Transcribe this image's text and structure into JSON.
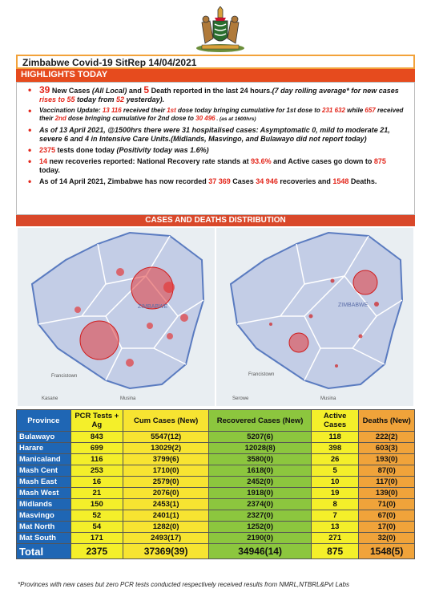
{
  "header": {
    "title": "Zimbabwe Covid-19 SitRep 14/04/2021",
    "highlights_label": "HIGHLIGHTS TODAY",
    "distribution_label": "CASES AND DEATHS DISTRIBUTION"
  },
  "bullets": {
    "b1_a": "39",
    "b1_b": " New Cases ",
    "b1_c": "(All Local)",
    "b1_d": " and ",
    "b1_e": "5",
    "b1_f": " Death reported in the last 24 hours.",
    "b1_g": "(7 day rolling average* for new cases ",
    "b1_h": "rises to 55",
    "b1_i": " today from ",
    "b1_j": "52",
    "b1_k": " yesterday).",
    "b2_a": "Vaccination Update: ",
    "b2_b": "13 116",
    "b2_c": " received their ",
    "b2_d": "1st",
    "b2_e": " dose today bringing cumulative for 1st dose to ",
    "b2_f": "231 632",
    "b2_g": " while ",
    "b2_h": "657",
    "b2_i": " received their ",
    "b2_j": "2nd",
    "b2_k": " dose bringing cumulative for 2nd dose to ",
    "b2_l": "30 496",
    "b2_m": " . (as at 1600hrs)",
    "b3": "As of 13 April 2021, @1500hrs there were 31 hospitalised cases: Asymptomatic 0, mild to moderate 21, severe 6 and 4  in Intensive Care Units.(Midlands, Masvingo, and Bulawayo did not  report  today)",
    "b4_a": "2375",
    "b4_b": "  tests done today ",
    "b4_c": "(Positivity today was 1.6%)",
    "b5_a": "14",
    "b5_b": " new recoveries reported: National Recovery rate stands at ",
    "b5_c": "93.6%",
    "b5_d": " and Active cases go down to ",
    "b5_e": "875",
    "b5_f": " today.",
    "b6_a": "As of 14 April 2021, Zimbabwe has now recorded ",
    "b6_b": "37 369",
    "b6_c": "  Cases ",
    "b6_d": "34 946",
    "b6_e": "  recoveries and ",
    "b6_f": "1548",
    "b6_g": "  Deaths."
  },
  "maps": {
    "left": {
      "country_label": "ZIMBABWE",
      "city_label": "Francistown",
      "city2_label": "Musina",
      "city3_label": "Kasane"
    },
    "right": {
      "country_label": "ZIMBABWE",
      "city_label": "Francistown",
      "city2_label": "Musina",
      "city3_label": "Serowe"
    }
  },
  "colors": {
    "accent_orange": "#e64b1e",
    "title_border": "#f2a23a",
    "province_blue": "#1f66b4",
    "yellow": "#f4ef2a",
    "green": "#8cc63e",
    "deaths_orange": "#f0a33a",
    "highlight_red": "#e3261b"
  },
  "table": {
    "headers": {
      "province": "Province",
      "pcr": "PCR Tests + Ag",
      "cum": "Cum Cases (New)",
      "rec": "Recovered Cases (New)",
      "act": "Active Cases",
      "dea": "Deaths (New)"
    },
    "rows": [
      [
        "Bulawayo",
        "843",
        "5547(12)",
        "5207(6)",
        "118",
        "222(2)"
      ],
      [
        "Harare",
        "699",
        "13029(2)",
        "12028(8)",
        "398",
        "603(3)"
      ],
      [
        "Manicaland",
        "116",
        "3799(6)",
        "3580(0)",
        "26",
        "193(0)"
      ],
      [
        "Mash Cent",
        "253",
        "1710(0)",
        "1618(0)",
        "5",
        "87(0)"
      ],
      [
        "Mash East",
        "16",
        "2579(0)",
        "2452(0)",
        "10",
        "117(0)"
      ],
      [
        "Mash West",
        "21",
        "2076(0)",
        "1918(0)",
        "19",
        "139(0)"
      ],
      [
        "Midlands",
        "150",
        "2453(1)",
        "2374(0)",
        "8",
        "71(0)"
      ],
      [
        "Masvingo",
        "52",
        "2401(1)",
        "2327(0)",
        "7",
        "67(0)"
      ],
      [
        "Mat North",
        "54",
        "1282(0)",
        "1252(0)",
        "13",
        "17(0)"
      ],
      [
        "Mat South",
        "171",
        "2493(17)",
        "2190(0)",
        "271",
        "32(0)"
      ]
    ],
    "total": [
      "Total",
      "2375",
      "37369(39)",
      "34946(14)",
      "875",
      "1548(5)"
    ]
  },
  "footnote": "*Provinces  with new cases but zero  PCR tests conducted respectively received results from NMRL,NTBRL&Pvt Labs"
}
